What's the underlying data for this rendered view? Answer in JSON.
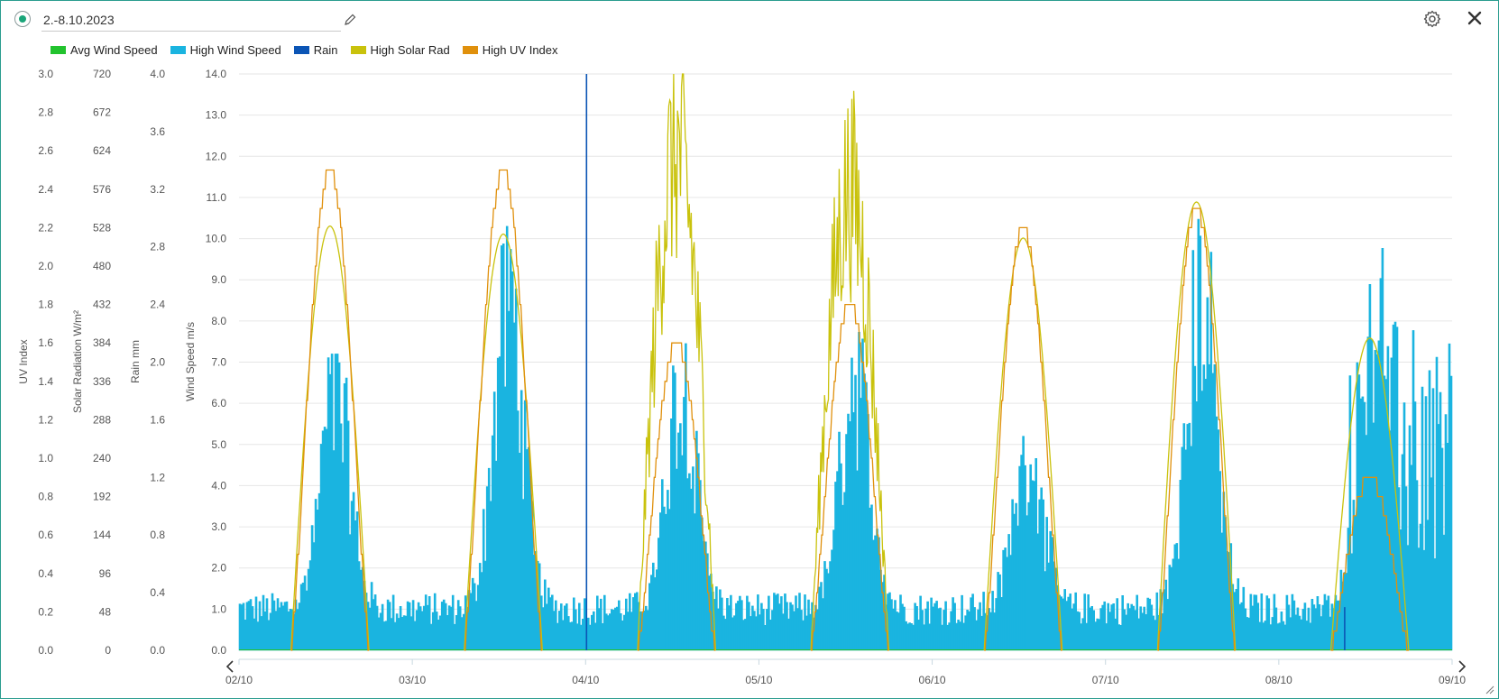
{
  "header": {
    "date_range": "2.-8.10.2023",
    "edit_icon": "pencil-icon",
    "settings_icon": "gear-icon",
    "close_icon": "close-icon"
  },
  "chart_data": {
    "type": "line",
    "series": [
      {
        "name": "Avg Wind Speed",
        "color": "#22c32e"
      },
      {
        "name": "High Wind Speed",
        "color": "#1ab4e0"
      },
      {
        "name": "Rain",
        "color": "#0b55b5"
      },
      {
        "name": "High Solar Rad",
        "color": "#c9c20c"
      },
      {
        "name": "High UV Index",
        "color": "#e0900c"
      }
    ],
    "x_ticks": [
      "02/10",
      "03/10",
      "04/10",
      "05/10",
      "06/10",
      "07/10",
      "08/10",
      "09/10"
    ],
    "axes": {
      "uv": {
        "title": "UV Index",
        "ticks": [
          "3.0",
          "2.8",
          "2.6",
          "2.4",
          "2.2",
          "2.0",
          "1.8",
          "1.6",
          "1.4",
          "1.2",
          "1.0",
          "0.8",
          "0.6",
          "0.4",
          "0.2",
          "0.0"
        ],
        "range": [
          0,
          3.0
        ]
      },
      "solar": {
        "title": "Solar Radiation W/m²",
        "ticks": [
          "720",
          "672",
          "624",
          "576",
          "528",
          "480",
          "432",
          "384",
          "336",
          "288",
          "240",
          "192",
          "144",
          "96",
          "48",
          "0"
        ],
        "range": [
          0,
          720
        ]
      },
      "rain": {
        "title": "Rain mm",
        "ticks": [
          "4.0",
          "3.6",
          "3.2",
          "2.8",
          "2.4",
          "2.0",
          "1.6",
          "1.2",
          "0.8",
          "0.4",
          "0.0"
        ],
        "range": [
          0,
          4.0
        ]
      },
      "wind": {
        "title": "Wind Speed m/s",
        "ticks": [
          "14.0",
          "13.0",
          "12.0",
          "11.0",
          "10.0",
          "9.0",
          "8.0",
          "7.0",
          "6.0",
          "5.0",
          "4.0",
          "3.0",
          "2.0",
          "1.0",
          "0.0"
        ],
        "range": [
          0,
          14.0
        ]
      }
    },
    "daily_peaks": [
      {
        "day": "02/10",
        "high_wind_max": 7.2,
        "solar_max": 530,
        "uv_max": 2.5
      },
      {
        "day": "03/10",
        "high_wind_max": 10.3,
        "solar_max": 520,
        "uv_max": 2.5
      },
      {
        "day": "04/10",
        "high_wind_max": 7.5,
        "solar_max": 670,
        "uv_max": 1.6,
        "rain_max": 4.0
      },
      {
        "day": "05/10",
        "high_wind_max": 7.8,
        "solar_max": 620,
        "uv_max": 1.8
      },
      {
        "day": "06/10",
        "high_wind_max": 5.2,
        "solar_max": 515,
        "uv_max": 2.2
      },
      {
        "day": "07/10",
        "high_wind_max": 10.5,
        "solar_max": 560,
        "uv_max": 2.3
      },
      {
        "day": "08/10",
        "high_wind_max": 9.8,
        "solar_max": 390,
        "uv_max": 0.9,
        "rain_max": 0.3
      }
    ],
    "grid": true,
    "legend_position": "top-left"
  }
}
